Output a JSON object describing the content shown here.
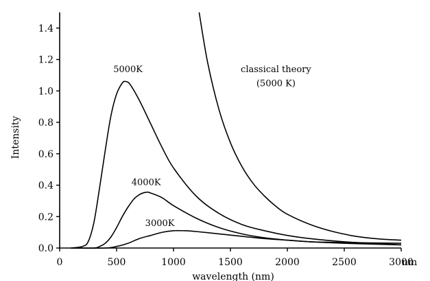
{
  "chart_data": {
    "type": "line",
    "title": "",
    "xlabel": "wavelength (nm)",
    "ylabel": "Intensity",
    "x_unit_label": "nm",
    "xlim": [
      0,
      3000
    ],
    "ylim": [
      0,
      1.5
    ],
    "x_ticks": [
      0,
      500,
      1000,
      1500,
      2000,
      2500,
      3000
    ],
    "x_tick_labels": [
      "0",
      "500",
      "1000",
      "1500",
      "2000",
      "2500",
      "3000"
    ],
    "y_ticks": [
      0,
      0.2,
      0.4,
      0.6,
      0.8,
      1.0,
      1.2,
      1.4
    ],
    "y_tick_labels": [
      "0.0",
      "0.2",
      "0.4",
      "0.6",
      "0.8",
      "1.0",
      "1.2",
      "1.4"
    ],
    "grid": false,
    "series": [
      {
        "name": "5000K",
        "x": [
          100,
          200,
          250,
          300,
          350,
          400,
          450,
          500,
          550,
          580,
          620,
          700,
          800,
          900,
          1000,
          1200,
          1400,
          1600,
          1800,
          2000,
          2200,
          2500,
          3000
        ],
        "y": [
          0.0,
          0.01,
          0.04,
          0.16,
          0.38,
          0.62,
          0.84,
          0.98,
          1.05,
          1.06,
          1.04,
          0.94,
          0.79,
          0.64,
          0.51,
          0.33,
          0.22,
          0.15,
          0.11,
          0.08,
          0.06,
          0.04,
          0.02
        ]
      },
      {
        "name": "4000K",
        "x": [
          100,
          300,
          350,
          400,
          450,
          500,
          550,
          600,
          650,
          700,
          760,
          800,
          900,
          1000,
          1200,
          1400,
          1600,
          1800,
          2000,
          2200,
          2500,
          3000
        ],
        "y": [
          0.0,
          0.0,
          0.01,
          0.03,
          0.07,
          0.13,
          0.2,
          0.26,
          0.31,
          0.34,
          0.355,
          0.35,
          0.32,
          0.27,
          0.19,
          0.13,
          0.09,
          0.065,
          0.05,
          0.04,
          0.03,
          0.02
        ]
      },
      {
        "name": "3000K",
        "x": [
          100,
          400,
          500,
          600,
          700,
          800,
          900,
          1000,
          1100,
          1200,
          1400,
          1600,
          1800,
          2000,
          2200,
          2500,
          3000
        ],
        "y": [
          0.0,
          0.0,
          0.01,
          0.03,
          0.06,
          0.08,
          0.1,
          0.11,
          0.11,
          0.105,
          0.09,
          0.075,
          0.06,
          0.05,
          0.04,
          0.035,
          0.03
        ]
      },
      {
        "name": "classical theory (5000 K)",
        "x": [
          1225,
          1300,
          1400,
          1500,
          1600,
          1700,
          1800,
          1900,
          2000,
          2200,
          2400,
          2600,
          2800,
          3000
        ],
        "y": [
          1.5,
          1.18,
          0.88,
          0.67,
          0.52,
          0.41,
          0.33,
          0.265,
          0.215,
          0.15,
          0.105,
          0.075,
          0.058,
          0.05
        ]
      }
    ],
    "annotations": [
      {
        "text": "5000K",
        "x": 600,
        "y": 1.12
      },
      {
        "text": "4000K",
        "x": 760,
        "y": 0.4
      },
      {
        "text": "3000K",
        "x": 880,
        "y": 0.14
      },
      {
        "text": "classical theory",
        "x": 1900,
        "y": 1.12
      },
      {
        "text": "(5000 K)",
        "x": 1900,
        "y": 1.03
      }
    ]
  }
}
